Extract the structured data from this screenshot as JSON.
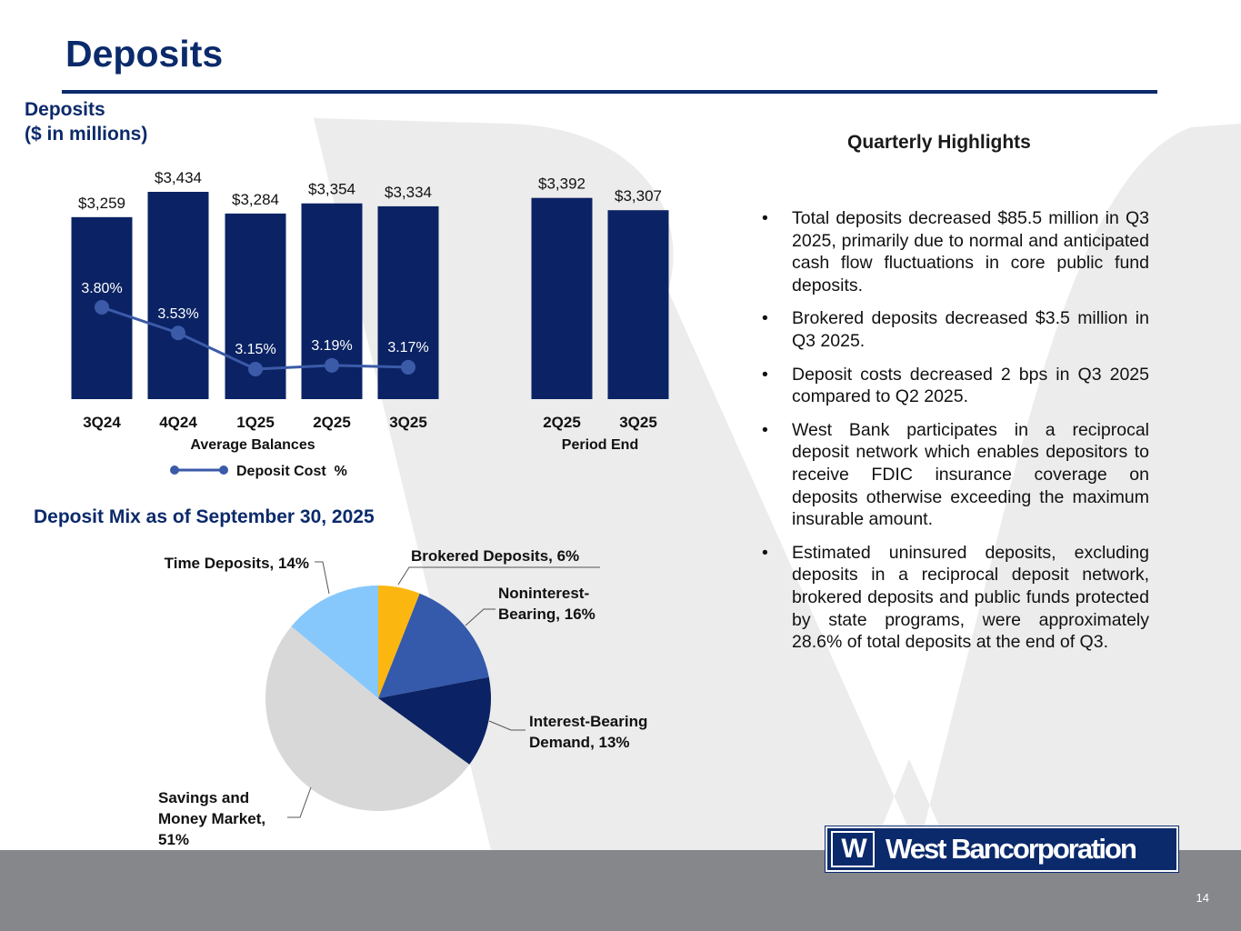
{
  "page": {
    "title": "Deposits",
    "page_number": "14"
  },
  "colors": {
    "navy": "#0b2a6b",
    "bar": "#0b2364",
    "cost_line": "#3b5aa8",
    "footer_gray": "#86878b",
    "watermark": "#ebebeb"
  },
  "bar_section": {
    "label_line1": "Deposits",
    "label_line2": "($ in millions)"
  },
  "highlights": {
    "title": "Quarterly Highlights",
    "bullets": [
      "Total deposits decreased $85.5 million in Q3 2025, primarily due to normal and anticipated cash flow fluctuations in core public fund deposits.",
      "Brokered deposits decreased $3.5 million in Q3 2025.",
      "Deposit costs decreased 2 bps in Q3 2025 compared to Q2 2025.",
      "West Bank participates in a reciprocal deposit network which enables depositors to receive FDIC insurance coverage on deposits otherwise exceeding the maximum insurable amount.",
      "Estimated uninsured deposits, excluding deposits in a reciprocal deposit network, brokered deposits and public funds protected by state programs, were approximately 28.6% of total deposits at the end of Q3."
    ]
  },
  "logo": {
    "mark": "W",
    "name": "West Bancorporation"
  },
  "chart_data": [
    {
      "type": "bar",
      "group_label": "Average Balances",
      "categories": [
        "3Q24",
        "4Q24",
        "1Q25",
        "2Q25",
        "3Q25"
      ],
      "values": [
        3259,
        3434,
        3284,
        3354,
        3334
      ],
      "value_labels": [
        "$3,259",
        "$3,434",
        "$3,284",
        "$3,354",
        "$3,334"
      ],
      "line_series": {
        "name": "Deposit Cost  %",
        "values": [
          3.8,
          3.53,
          3.15,
          3.19,
          3.17
        ],
        "labels": [
          "3.80%",
          "3.53%",
          "3.15%",
          "3.19%",
          "3.17%"
        ]
      },
      "legend": "bottom"
    },
    {
      "type": "bar",
      "group_label": "Period End",
      "categories": [
        "2Q25",
        "3Q25"
      ],
      "values": [
        3392,
        3307
      ],
      "value_labels": [
        "$3,392",
        "$3,307"
      ]
    },
    {
      "type": "pie",
      "title": "Deposit Mix as of September 30, 2025",
      "slices": [
        {
          "label": "Brokered Deposits, 6%",
          "value": 6,
          "color": "#fbb710"
        },
        {
          "label": "Noninterest-Bearing, 16%",
          "value": 16,
          "color": "#3559ab"
        },
        {
          "label": "Interest-Bearing Demand, 13%",
          "value": 13,
          "color": "#0b2364"
        },
        {
          "label": "Savings and Money Market, 51%",
          "value": 51,
          "color": "#d9d8d8"
        },
        {
          "label": "Time Deposits, 14%",
          "value": 14,
          "color": "#86c8fc"
        }
      ]
    }
  ]
}
